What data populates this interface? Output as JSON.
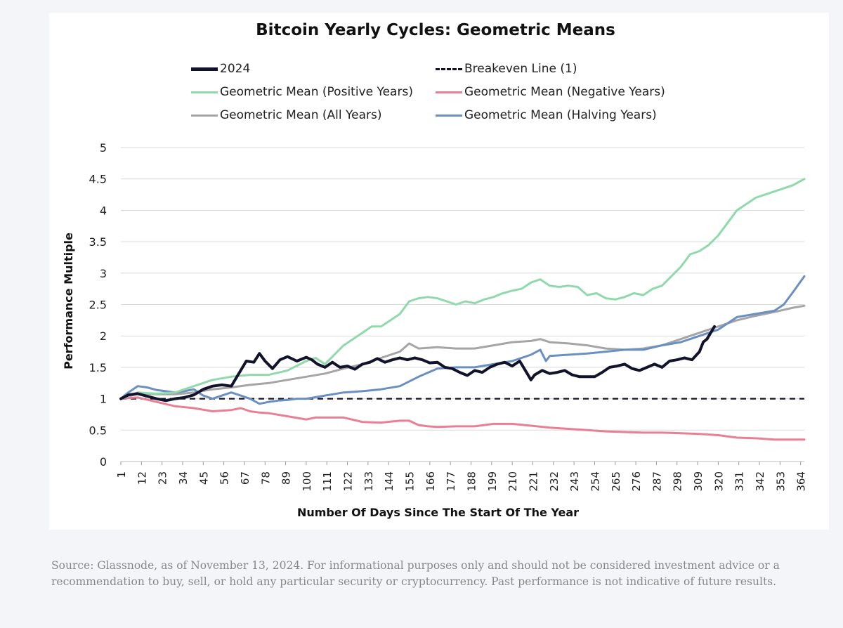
{
  "source_note": "Source: Glassnode, as of November 13, 2024. For informational purposes only and should not be considered investment advice or a recommendation to buy, sell, or hold any particular security or cryptocurrency. Past performance is not indicative of future results.",
  "chart_data": {
    "type": "line",
    "title": "Bitcoin Yearly Cycles: Geometric Means",
    "xlabel": "Number Of Days Since The Start Of The Year",
    "ylabel": "Performance Multiple",
    "xlim": [
      1,
      366
    ],
    "ylim": [
      0,
      5
    ],
    "grid": true,
    "legend_position": "top",
    "x_ticks": [
      "1",
      "12",
      "23",
      "34",
      "45",
      "56",
      "67",
      "78",
      "89",
      "100",
      "111",
      "122",
      "133",
      "144",
      "155",
      "166",
      "177",
      "188",
      "199",
      "210",
      "221",
      "232",
      "243",
      "254",
      "265",
      "276",
      "287",
      "298",
      "309",
      "320",
      "331",
      "342",
      "353",
      "364"
    ],
    "y_ticks": [
      "0",
      "0.5",
      "1",
      "1.5",
      "2",
      "2.5",
      "3",
      "3.5",
      "4",
      "4.5",
      "5"
    ],
    "series": [
      {
        "name": "2024",
        "color": "#12122a",
        "style": "solid-bold",
        "x": [
          1,
          5,
          10,
          15,
          20,
          25,
          30,
          35,
          40,
          45,
          50,
          55,
          60,
          65,
          68,
          72,
          75,
          78,
          82,
          86,
          90,
          95,
          100,
          103,
          106,
          110,
          114,
          118,
          122,
          126,
          130,
          134,
          138,
          142,
          146,
          150,
          154,
          158,
          162,
          166,
          170,
          174,
          178,
          182,
          186,
          190,
          194,
          198,
          202,
          206,
          210,
          214,
          218,
          220,
          222,
          226,
          230,
          234,
          238,
          242,
          246,
          250,
          254,
          258,
          262,
          266,
          270,
          274,
          278,
          282,
          286,
          290,
          294,
          298,
          302,
          306,
          310,
          312,
          314,
          316,
          318
        ],
        "y": [
          1.0,
          1.06,
          1.08,
          1.04,
          1.0,
          0.97,
          1.0,
          1.02,
          1.06,
          1.15,
          1.2,
          1.22,
          1.2,
          1.45,
          1.6,
          1.58,
          1.72,
          1.6,
          1.48,
          1.62,
          1.67,
          1.6,
          1.66,
          1.62,
          1.55,
          1.5,
          1.58,
          1.5,
          1.52,
          1.47,
          1.55,
          1.58,
          1.64,
          1.58,
          1.62,
          1.65,
          1.62,
          1.65,
          1.62,
          1.57,
          1.58,
          1.5,
          1.48,
          1.42,
          1.37,
          1.45,
          1.42,
          1.5,
          1.55,
          1.58,
          1.52,
          1.6,
          1.4,
          1.3,
          1.38,
          1.45,
          1.4,
          1.42,
          1.45,
          1.38,
          1.35,
          1.35,
          1.35,
          1.42,
          1.5,
          1.52,
          1.55,
          1.48,
          1.45,
          1.5,
          1.55,
          1.5,
          1.6,
          1.62,
          1.65,
          1.62,
          1.75,
          1.9,
          1.95,
          2.05,
          2.15
        ]
      },
      {
        "name": "Breakeven Line (1)",
        "color": "#12122a",
        "style": "dashed",
        "x": [
          1,
          366
        ],
        "y": [
          1,
          1
        ]
      },
      {
        "name": "Geometric Mean (Positive Years)",
        "color": "#8fd9ac",
        "style": "solid",
        "x": [
          1,
          10,
          20,
          30,
          40,
          50,
          60,
          70,
          80,
          90,
          100,
          105,
          110,
          115,
          120,
          125,
          130,
          135,
          140,
          145,
          150,
          155,
          160,
          165,
          170,
          175,
          180,
          185,
          190,
          195,
          200,
          205,
          210,
          215,
          220,
          225,
          230,
          235,
          240,
          245,
          250,
          255,
          260,
          265,
          270,
          275,
          280,
          285,
          290,
          295,
          300,
          305,
          310,
          315,
          320,
          325,
          330,
          335,
          340,
          345,
          350,
          355,
          360,
          366
        ],
        "y": [
          1.0,
          1.1,
          1.08,
          1.1,
          1.2,
          1.3,
          1.35,
          1.38,
          1.38,
          1.45,
          1.6,
          1.65,
          1.55,
          1.7,
          1.85,
          1.95,
          2.05,
          2.15,
          2.15,
          2.25,
          2.35,
          2.55,
          2.6,
          2.62,
          2.6,
          2.55,
          2.5,
          2.55,
          2.52,
          2.58,
          2.62,
          2.68,
          2.72,
          2.75,
          2.85,
          2.9,
          2.8,
          2.78,
          2.8,
          2.78,
          2.65,
          2.68,
          2.6,
          2.58,
          2.62,
          2.68,
          2.65,
          2.75,
          2.8,
          2.95,
          3.1,
          3.3,
          3.35,
          3.45,
          3.6,
          3.8,
          4.0,
          4.1,
          4.2,
          4.25,
          4.3,
          4.35,
          4.4,
          4.5
        ]
      },
      {
        "name": "Geometric Mean (Negative Years)",
        "color": "#e87f95",
        "style": "solid",
        "x": [
          1,
          10,
          20,
          30,
          40,
          50,
          60,
          65,
          70,
          75,
          80,
          90,
          100,
          105,
          110,
          120,
          130,
          140,
          150,
          155,
          160,
          165,
          170,
          180,
          190,
          200,
          210,
          220,
          230,
          240,
          250,
          260,
          270,
          280,
          290,
          300,
          310,
          320,
          330,
          340,
          350,
          360,
          366
        ],
        "y": [
          1.0,
          1.02,
          0.95,
          0.88,
          0.85,
          0.8,
          0.82,
          0.85,
          0.8,
          0.78,
          0.77,
          0.72,
          0.67,
          0.7,
          0.7,
          0.7,
          0.63,
          0.62,
          0.65,
          0.65,
          0.58,
          0.56,
          0.55,
          0.56,
          0.56,
          0.6,
          0.6,
          0.57,
          0.54,
          0.52,
          0.5,
          0.48,
          0.47,
          0.46,
          0.46,
          0.45,
          0.44,
          0.42,
          0.38,
          0.37,
          0.35,
          0.35,
          0.35
        ]
      },
      {
        "name": "Geometric Mean (All Years)",
        "color": "#a5a5a8",
        "style": "solid",
        "x": [
          1,
          10,
          20,
          30,
          40,
          50,
          60,
          70,
          80,
          90,
          100,
          110,
          120,
          130,
          140,
          150,
          155,
          160,
          170,
          180,
          190,
          200,
          210,
          220,
          225,
          230,
          240,
          250,
          260,
          270,
          280,
          290,
          300,
          310,
          320,
          330,
          340,
          350,
          360,
          366
        ],
        "y": [
          1.0,
          1.08,
          1.07,
          1.07,
          1.1,
          1.15,
          1.18,
          1.22,
          1.25,
          1.3,
          1.35,
          1.4,
          1.48,
          1.55,
          1.65,
          1.75,
          1.88,
          1.8,
          1.82,
          1.8,
          1.8,
          1.85,
          1.9,
          1.92,
          1.95,
          1.9,
          1.88,
          1.85,
          1.8,
          1.78,
          1.8,
          1.85,
          1.95,
          2.05,
          2.15,
          2.25,
          2.32,
          2.38,
          2.45,
          2.48
        ]
      },
      {
        "name": "Geometric Mean (Halving Years)",
        "color": "#6a8fc2",
        "style": "solid",
        "x": [
          1,
          5,
          10,
          15,
          20,
          25,
          30,
          35,
          40,
          45,
          50,
          55,
          60,
          65,
          70,
          75,
          80,
          85,
          90,
          95,
          100,
          110,
          120,
          130,
          140,
          150,
          160,
          170,
          180,
          190,
          200,
          210,
          220,
          225,
          228,
          230,
          240,
          250,
          260,
          270,
          280,
          290,
          300,
          310,
          320,
          330,
          340,
          350,
          355,
          360,
          366
        ],
        "y": [
          1.0,
          1.1,
          1.2,
          1.18,
          1.14,
          1.12,
          1.1,
          1.12,
          1.15,
          1.05,
          1.0,
          1.05,
          1.1,
          1.05,
          1.0,
          0.92,
          0.95,
          0.97,
          0.98,
          1.0,
          1.0,
          1.05,
          1.1,
          1.12,
          1.15,
          1.2,
          1.35,
          1.48,
          1.5,
          1.5,
          1.55,
          1.6,
          1.7,
          1.78,
          1.6,
          1.68,
          1.7,
          1.72,
          1.75,
          1.78,
          1.78,
          1.85,
          1.9,
          2.0,
          2.1,
          2.3,
          2.35,
          2.4,
          2.5,
          2.7,
          2.95
        ]
      }
    ]
  }
}
